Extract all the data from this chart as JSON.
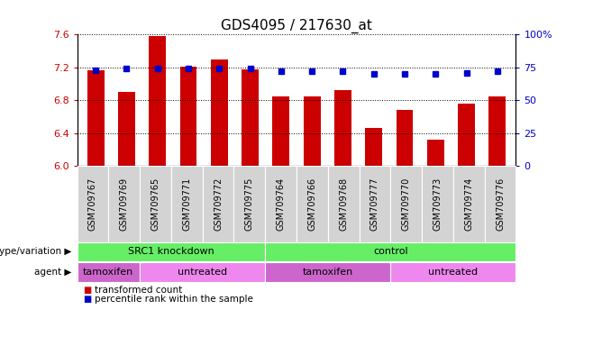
{
  "title": "GDS4095 / 217630_at",
  "samples": [
    "GSM709767",
    "GSM709769",
    "GSM709765",
    "GSM709771",
    "GSM709772",
    "GSM709775",
    "GSM709764",
    "GSM709766",
    "GSM709768",
    "GSM709777",
    "GSM709770",
    "GSM709773",
    "GSM709774",
    "GSM709776"
  ],
  "bar_values": [
    7.17,
    6.9,
    7.58,
    7.21,
    7.3,
    7.18,
    6.85,
    6.85,
    6.92,
    6.46,
    6.68,
    6.32,
    6.76,
    6.85
  ],
  "percentile_values": [
    73,
    74,
    74,
    74,
    74,
    74,
    72,
    72,
    72,
    70,
    70,
    70,
    71,
    72
  ],
  "ylim_left": [
    6.0,
    7.6
  ],
  "ylim_right": [
    0,
    100
  ],
  "yticks_left": [
    6.0,
    6.4,
    6.8,
    7.2,
    7.6
  ],
  "yticks_right": [
    0,
    25,
    50,
    75,
    100
  ],
  "bar_color": "#cc0000",
  "dot_color": "#0000cc",
  "plot_bg_color": "#ffffff",
  "tick_label_bg": "#d3d3d3",
  "grid_color": "#000000",
  "genotype_groups": [
    {
      "label": "SRC1 knockdown",
      "start": 0,
      "end": 6,
      "color": "#66ee66"
    },
    {
      "label": "control",
      "start": 6,
      "end": 14,
      "color": "#66ee66"
    }
  ],
  "agent_groups": [
    {
      "label": "tamoxifen",
      "start": 0,
      "end": 2,
      "color": "#cc66cc"
    },
    {
      "label": "untreated",
      "start": 2,
      "end": 6,
      "color": "#ee88ee"
    },
    {
      "label": "tamoxifen",
      "start": 6,
      "end": 10,
      "color": "#cc66cc"
    },
    {
      "label": "untreated",
      "start": 10,
      "end": 14,
      "color": "#ee88ee"
    }
  ],
  "legend_items": [
    {
      "label": "transformed count",
      "color": "#cc0000"
    },
    {
      "label": "percentile rank within the sample",
      "color": "#0000cc"
    }
  ],
  "left_axis_color": "#cc0000",
  "right_axis_color": "#0000cc",
  "title_fontsize": 11,
  "axis_tick_fontsize": 8,
  "sample_label_fontsize": 7,
  "annot_fontsize": 8,
  "bar_width": 0.55
}
